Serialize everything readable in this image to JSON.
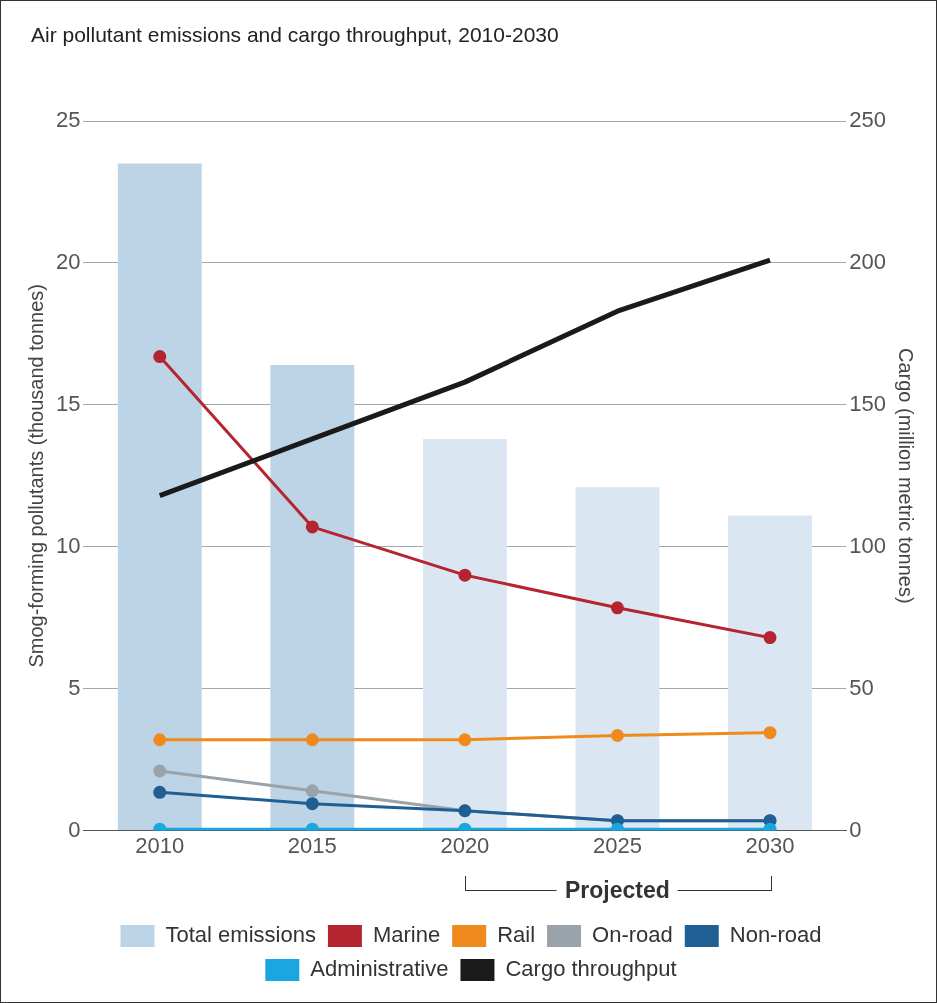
{
  "chart_data": {
    "type": "bar",
    "title": "Air pollutant emissions and cargo throughput, 2010-2030",
    "categories": [
      "2010",
      "2015",
      "2020",
      "2025",
      "2030"
    ],
    "ylabel": "Smog-forming pollutants (thousand tonnes)",
    "y2label": "Cargo (million metric tonnes)",
    "ylim": [
      0,
      25
    ],
    "yticks": [
      0,
      5,
      10,
      15,
      20,
      25
    ],
    "y2lim": [
      0,
      250
    ],
    "y2ticks": [
      0,
      50,
      100,
      150,
      200,
      250
    ],
    "grid": "y",
    "legend": "bottom",
    "marker": "circle",
    "annotations": [
      "Projected"
    ],
    "series": [
      {
        "name": "Total emissions",
        "color": "#bdd3e6",
        "colors": [
          "#bdd3e6",
          "#bdd3e6",
          "#dbe6f3",
          "#dbe6f3",
          "#dbe6f3"
        ],
        "values": [
          23.5,
          16.4,
          13.8,
          12.1,
          11.1
        ]
      },
      {
        "name": "Marine",
        "type": "line",
        "color": "#b5252f",
        "values": [
          16.7,
          10.7,
          9.0,
          7.85,
          6.8
        ]
      },
      {
        "name": "Rail",
        "type": "line",
        "color": "#f08a1d",
        "values": [
          3.2,
          3.2,
          3.2,
          3.35,
          3.45
        ]
      },
      {
        "name": "On-road",
        "type": "line",
        "color": "#9aa3aa",
        "values": [
          2.1,
          1.4,
          0.7,
          0.35,
          0.35
        ]
      },
      {
        "name": "Non-road",
        "type": "line",
        "color": "#1f5f93",
        "values": [
          1.35,
          0.95,
          0.7,
          0.35,
          0.35
        ]
      },
      {
        "name": "Administrative",
        "type": "line",
        "color": "#1aa7e0",
        "values": [
          0.05,
          0.05,
          0.05,
          0.05,
          0.05
        ]
      },
      {
        "name": "Cargo throughput",
        "type": "line",
        "color": "#1a1a1a",
        "axis": "y2",
        "marker": "none",
        "values": [
          118,
          138,
          158,
          183,
          201
        ]
      }
    ]
  }
}
